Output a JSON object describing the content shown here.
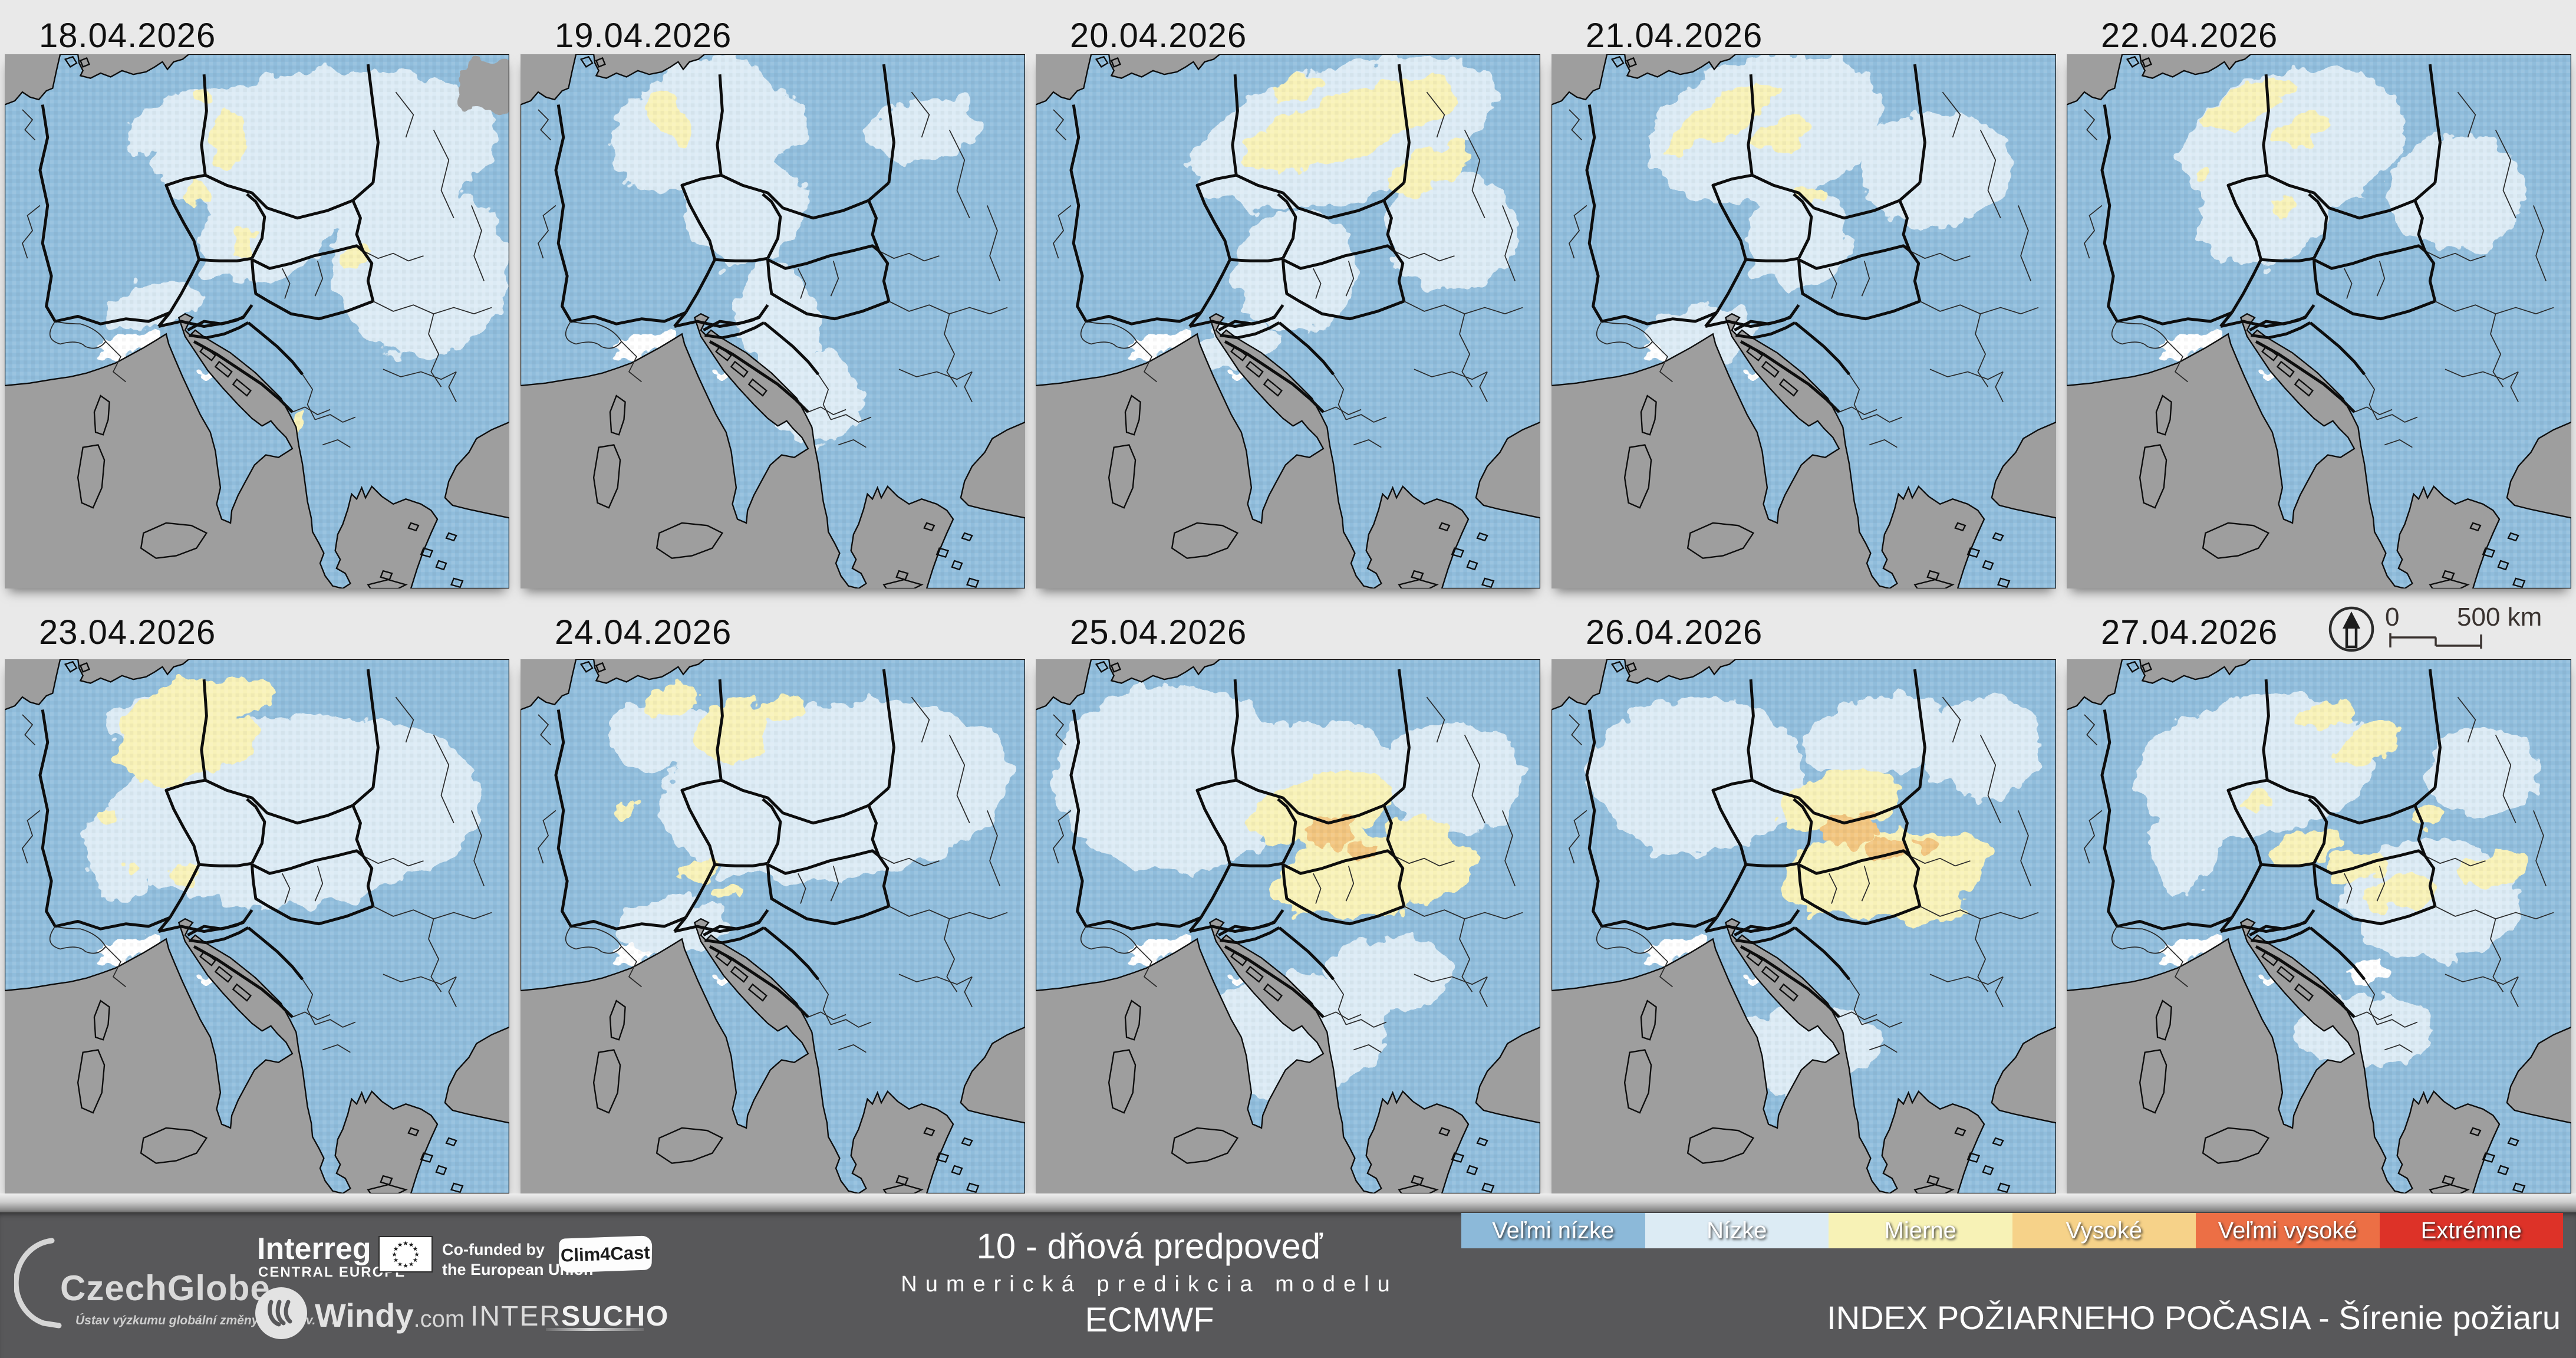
{
  "page": {
    "bg": "#e9e9e9",
    "bar_bg": "#58585a"
  },
  "map_colors": {
    "sea": "#9e9e9e",
    "base": "#90bddc",
    "low": "#dcebf5",
    "moderate": "#f8f2b8",
    "high": "#f2c57f",
    "white": "#ffffff",
    "coast": "#0d0d0d",
    "border_thick": "#0d0d0d",
    "border_thin": "#2a2a2a"
  },
  "panels": [
    {
      "date": "18.04.2026",
      "overlays": [
        [
          "S",
          385,
          26,
          28,
          22,
          0
        ],
        [
          "L",
          255,
          75,
          135,
          62,
          -5
        ],
        [
          "L",
          330,
          170,
          70,
          70,
          0
        ],
        [
          "L",
          150,
          55,
          55,
          25,
          -10
        ],
        [
          "L",
          205,
          145,
          55,
          35,
          -15
        ],
        [
          "L",
          118,
          200,
          38,
          18,
          -10
        ],
        [
          "M",
          178,
          66,
          13,
          26,
          8
        ],
        [
          "M",
          152,
          114,
          11,
          8,
          0
        ],
        [
          "M",
          192,
          150,
          8,
          14,
          0
        ],
        [
          "M",
          277,
          162,
          11,
          9,
          0
        ],
        [
          "M",
          232,
          294,
          5,
          12,
          0
        ],
        [
          "M",
          160,
          34,
          8,
          5,
          0
        ]
      ]
    },
    {
      "date": "19.04.2026",
      "overlays": [
        [
          "L",
          135,
          55,
          70,
          45,
          -35
        ],
        [
          "L",
          185,
          60,
          42,
          30,
          -20
        ],
        [
          "L",
          178,
          122,
          48,
          45,
          -20
        ],
        [
          "L",
          205,
          212,
          32,
          48,
          -12
        ],
        [
          "L",
          235,
          272,
          38,
          36,
          0
        ],
        [
          "L",
          320,
          60,
          45,
          25,
          -10
        ],
        [
          "M",
          118,
          52,
          13,
          26,
          -30
        ]
      ]
    },
    {
      "date": "20.04.2026",
      "overlays": [
        [
          "L",
          245,
          62,
          125,
          52,
          -16
        ],
        [
          "L",
          205,
          172,
          48,
          48,
          0
        ],
        [
          "L",
          330,
          140,
          52,
          48,
          0
        ],
        [
          "L",
          160,
          230,
          30,
          18,
          -10
        ],
        [
          "M",
          250,
          55,
          90,
          24,
          -18
        ],
        [
          "M",
          312,
          92,
          36,
          16,
          -22
        ],
        [
          "M",
          205,
          28,
          22,
          9,
          -10
        ]
      ]
    },
    {
      "date": "21.04.2026",
      "overlays": [
        [
          "L",
          170,
          60,
          95,
          58,
          -14
        ],
        [
          "L",
          195,
          145,
          42,
          40,
          -10
        ],
        [
          "L",
          305,
          90,
          60,
          45,
          0
        ],
        [
          "L",
          120,
          222,
          45,
          22,
          0
        ],
        [
          "M",
          135,
          50,
          46,
          15,
          -28
        ],
        [
          "M",
          182,
          64,
          24,
          13,
          -15
        ],
        [
          "M",
          205,
          110,
          12,
          7,
          0
        ]
      ]
    },
    {
      "date": "22.04.2026",
      "overlays": [
        [
          "L",
          180,
          70,
          90,
          58,
          -14
        ],
        [
          "L",
          155,
          130,
          52,
          36,
          -10
        ],
        [
          "L",
          310,
          110,
          55,
          45,
          0
        ],
        [
          "M",
          142,
          40,
          40,
          14,
          -25
        ],
        [
          "M",
          187,
          60,
          22,
          12,
          -15
        ],
        [
          "M",
          110,
          95,
          8,
          5,
          0
        ],
        [
          "M",
          170,
          120,
          10,
          6,
          0
        ]
      ]
    },
    {
      "date": "23.04.2026",
      "overlays": [
        [
          "L",
          230,
          120,
          148,
          76,
          -5
        ],
        [
          "L",
          130,
          52,
          48,
          25,
          0
        ],
        [
          "L",
          95,
          150,
          30,
          40,
          0
        ],
        [
          "M",
          140,
          57,
          52,
          40,
          -25
        ],
        [
          "M",
          182,
          30,
          30,
          16,
          -5
        ],
        [
          "M",
          83,
          122,
          9,
          7,
          0
        ],
        [
          "M",
          100,
          170,
          8,
          8,
          0
        ],
        [
          "M",
          141,
          172,
          11,
          9,
          0
        ],
        [
          "M",
          175,
          65,
          28,
          18,
          -20
        ]
      ]
    },
    {
      "date": "24.04.2026",
      "overlays": [
        [
          "L",
          250,
          105,
          140,
          70,
          -8
        ],
        [
          "L",
          110,
          60,
          40,
          28,
          0
        ],
        [
          "L",
          120,
          212,
          46,
          22,
          0
        ],
        [
          "M",
          122,
          30,
          24,
          12,
          -10
        ],
        [
          "M",
          168,
          58,
          30,
          24,
          -15
        ],
        [
          "M",
          85,
          118,
          10,
          7,
          0
        ],
        [
          "M",
          140,
          168,
          12,
          8,
          0
        ],
        [
          "M",
          162,
          186,
          10,
          6,
          0
        ],
        [
          "M",
          205,
          40,
          18,
          9,
          -10
        ]
      ]
    },
    {
      "date": "25.04.2026",
      "overlays": [
        [
          "L",
          110,
          95,
          95,
          75,
          0
        ],
        [
          "L",
          215,
          95,
          70,
          45,
          -10
        ],
        [
          "L",
          330,
          95,
          55,
          45,
          0
        ],
        [
          "L",
          200,
          300,
          80,
          48,
          -10
        ],
        [
          "L",
          280,
          250,
          50,
          30,
          0
        ],
        [
          "M",
          225,
          118,
          58,
          26,
          -15
        ],
        [
          "M",
          268,
          172,
          80,
          32,
          -8
        ],
        [
          "M",
          240,
          145,
          26,
          16,
          0
        ],
        [
          "M",
          305,
          140,
          28,
          14,
          0
        ],
        [
          "H",
          233,
          138,
          18,
          11,
          0
        ],
        [
          "H",
          258,
          151,
          12,
          7,
          0
        ],
        [
          "H",
          244,
          127,
          9,
          6,
          0
        ]
      ]
    },
    {
      "date": "26.04.2026",
      "overlays": [
        [
          "L",
          115,
          92,
          85,
          62,
          0
        ],
        [
          "L",
          340,
          70,
          48,
          40,
          0
        ],
        [
          "L",
          195,
          310,
          65,
          35,
          -8
        ],
        [
          "L",
          260,
          60,
          60,
          30,
          -10
        ],
        [
          "M",
          262,
          170,
          80,
          35,
          -6
        ],
        [
          "M",
          228,
          112,
          48,
          24,
          -12
        ],
        [
          "M",
          298,
          196,
          30,
          15,
          0
        ],
        [
          "M",
          320,
          150,
          25,
          12,
          0
        ],
        [
          "H",
          236,
          136,
          22,
          12,
          0
        ],
        [
          "H",
          264,
          150,
          15,
          9,
          0
        ],
        [
          "H",
          298,
          148,
          10,
          6,
          0
        ],
        [
          "H",
          250,
          122,
          8,
          5,
          0
        ]
      ]
    },
    {
      "date": "27.04.2026",
      "overlays": [
        [
          "L",
          150,
          85,
          95,
          55,
          -8
        ],
        [
          "L",
          290,
          190,
          70,
          48,
          0
        ],
        [
          "L",
          235,
          295,
          55,
          28,
          0
        ],
        [
          "L",
          330,
          90,
          45,
          35,
          0
        ],
        [
          "L",
          95,
          150,
          28,
          35,
          0
        ],
        [
          "M",
          205,
          45,
          22,
          10,
          -15
        ],
        [
          "M",
          240,
          65,
          25,
          14,
          -20
        ],
        [
          "M",
          150,
          115,
          12,
          7,
          0
        ],
        [
          "M",
          190,
          150,
          30,
          13,
          -12
        ],
        [
          "M",
          230,
          165,
          25,
          12,
          -8
        ],
        [
          "M",
          265,
          185,
          30,
          14,
          -10
        ],
        [
          "M",
          340,
          165,
          30,
          14,
          -15
        ],
        [
          "M",
          285,
          125,
          12,
          7,
          0
        ],
        [
          "W",
          240,
          250,
          15,
          8,
          -10
        ]
      ]
    }
  ],
  "common_overlays": [
    [
      "W",
      95,
      232,
      16,
      7,
      -20
    ],
    [
      "W",
      112,
      226,
      10,
      5,
      -10
    ],
    [
      "W",
      80,
      240,
      8,
      4,
      0
    ],
    [
      "W",
      170,
      250,
      12,
      5,
      -30
    ]
  ],
  "legend": {
    "items": [
      {
        "label": "Veľmi nízke",
        "color": "#8cb9d9"
      },
      {
        "label": "Nízke",
        "color": "#dcebf4"
      },
      {
        "label": "Mierne",
        "color": "#f7f2b6"
      },
      {
        "label": "Vysoké",
        "color": "#f6d289"
      },
      {
        "label": "Veľmi vysoké",
        "color": "#ec6f45"
      },
      {
        "label": "Extrémne",
        "color": "#dd3228"
      }
    ]
  },
  "scalebar": {
    "zero": "0",
    "label": "500 km"
  },
  "footer": {
    "center": {
      "line1": "10 - dňová predpoveď",
      "line2": "Numerická predikcia modelu",
      "line3": "ECMWF"
    },
    "title": "INDEX POŽIARNEHO POČASIA - Šírenie požiaru",
    "logos": {
      "czechglobe": "CzechGlobe",
      "czechglobe_sub": "Ústav výzkumu globální změny AV ČR, v. v. i.",
      "interreg": "Interreg",
      "interreg_sub": "CENTRAL EUROPE",
      "cofunded1": "Co-funded by",
      "cofunded2": "the European Union",
      "clim4cast": "Clim4Cast",
      "windy": "Windy",
      "windy_tld": ".com",
      "intersucho_a": "INTER",
      "intersucho_b": "SUCHO"
    }
  }
}
